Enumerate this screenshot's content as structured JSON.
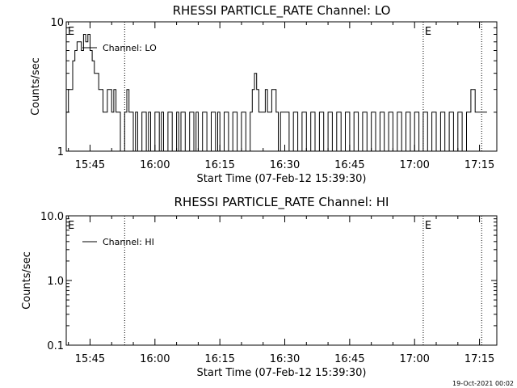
{
  "chart_data": [
    {
      "type": "line",
      "title": "RHESSI PARTICLE_RATE Channel: LO",
      "xlabel": "Start Time (07-Feb-12 15:39:30)",
      "ylabel": "Counts/sec",
      "yscale": "log",
      "ylim": [
        1,
        10
      ],
      "xlim": [
        "15:39:30",
        "17:19:00"
      ],
      "y_tick_labels": [
        "1",
        "10"
      ],
      "x_tick_labels": [
        "15:45",
        "16:00",
        "16:15",
        "16:30",
        "16:45",
        "17:00",
        "17:15"
      ],
      "vlines": [
        "15:53:00",
        "17:02:00",
        "17:15:30"
      ],
      "markers": [
        {
          "label": "E",
          "x": "15:39:30"
        },
        {
          "label": "E",
          "x": "17:02:00"
        }
      ],
      "legend": "top-left",
      "series": [
        {
          "name": "Channel: LO",
          "x": [
            "15:39:30",
            "15:40:00",
            "15:41:00",
            "15:41:30",
            "15:42:00",
            "15:43:00",
            "15:43:30",
            "15:44:00",
            "15:44:30",
            "15:45:00",
            "15:45:30",
            "15:46:00",
            "15:47:00",
            "15:48:00",
            "15:49:00",
            "15:50:00",
            "15:50:30",
            "15:51:00",
            "15:52:00",
            "15:53:00",
            "15:53:30",
            "15:54:00",
            "15:55:00",
            "15:55:30",
            "15:56:00",
            "15:57:00",
            "15:58:00",
            "15:58:30",
            "15:59:00",
            "16:00:00",
            "16:01:00",
            "16:01:30",
            "16:02:00",
            "16:03:00",
            "16:04:00",
            "16:05:00",
            "16:05:30",
            "16:06:00",
            "16:07:00",
            "16:08:00",
            "16:09:00",
            "16:09:30",
            "16:10:00",
            "16:11:00",
            "16:12:00",
            "16:13:00",
            "16:14:00",
            "16:14:30",
            "16:15:00",
            "16:16:00",
            "16:17:00",
            "16:18:00",
            "16:19:00",
            "16:20:00",
            "16:21:00",
            "16:22:00",
            "16:22:30",
            "16:23:00",
            "16:23:30",
            "16:24:00",
            "16:25:00",
            "16:25:30",
            "16:26:00",
            "16:27:00",
            "16:28:00",
            "16:28:30",
            "16:29:00",
            "16:30:00",
            "16:31:00",
            "16:32:00",
            "16:33:00",
            "16:34:00",
            "16:35:00",
            "16:36:00",
            "16:37:00",
            "16:38:00",
            "16:39:00",
            "16:40:00",
            "16:41:00",
            "16:42:00",
            "16:43:00",
            "16:44:00",
            "16:45:00",
            "16:46:00",
            "16:47:00",
            "16:48:00",
            "16:49:00",
            "16:50:00",
            "16:51:00",
            "16:52:00",
            "16:53:00",
            "16:54:00",
            "16:55:00",
            "16:56:00",
            "16:57:00",
            "16:58:00",
            "16:59:00",
            "17:00:00",
            "17:01:00",
            "17:02:00",
            "17:03:00",
            "17:04:00",
            "17:05:00",
            "17:06:00",
            "17:07:00",
            "17:08:00",
            "17:09:00",
            "17:10:00",
            "17:11:00",
            "17:12:00",
            "17:13:00",
            "17:14:00",
            "17:15:00",
            "17:16:00"
          ],
          "y": [
            2,
            3,
            5,
            6,
            7,
            6,
            8,
            7,
            8,
            6,
            5,
            4,
            3,
            2,
            3,
            2,
            3,
            2,
            1,
            2,
            3,
            2,
            1,
            2,
            1,
            2,
            1,
            2,
            1,
            2,
            1,
            2,
            1,
            2,
            1,
            2,
            1,
            2,
            1,
            2,
            1,
            2,
            1,
            2,
            1,
            2,
            1,
            2,
            1,
            2,
            1,
            2,
            1,
            2,
            1,
            2,
            3,
            4,
            3,
            2,
            2,
            3,
            2,
            3,
            2,
            1,
            2,
            2,
            1,
            2,
            1,
            2,
            1,
            2,
            1,
            2,
            1,
            2,
            1,
            2,
            1,
            2,
            1,
            2,
            1,
            2,
            1,
            2,
            1,
            2,
            1,
            2,
            1,
            2,
            1,
            2,
            1,
            2,
            1,
            2,
            1,
            2,
            1,
            2,
            1,
            2,
            1,
            2,
            1,
            2,
            3,
            2,
            2,
            2
          ]
        }
      ]
    },
    {
      "type": "line",
      "title": "RHESSI PARTICLE_RATE Channel: HI",
      "xlabel": "Start Time (07-Feb-12 15:39:30)",
      "ylabel": "Counts/sec",
      "yscale": "log",
      "ylim": [
        0.1,
        10
      ],
      "xlim": [
        "15:39:30",
        "17:19:00"
      ],
      "y_tick_labels": [
        "0.1",
        "1.0",
        "10.0"
      ],
      "x_tick_labels": [
        "15:45",
        "16:00",
        "16:15",
        "16:30",
        "16:45",
        "17:00",
        "17:15"
      ],
      "vlines": [
        "15:53:00",
        "17:02:00",
        "17:15:30"
      ],
      "markers": [
        {
          "label": "E",
          "x": "15:39:30"
        },
        {
          "label": "E",
          "x": "17:02:00"
        }
      ],
      "legend": "top-left",
      "series": [
        {
          "name": "Channel: HI",
          "x": [],
          "y": []
        }
      ]
    }
  ],
  "footer": {
    "timestamp": "19-Oct-2021 00:02"
  }
}
